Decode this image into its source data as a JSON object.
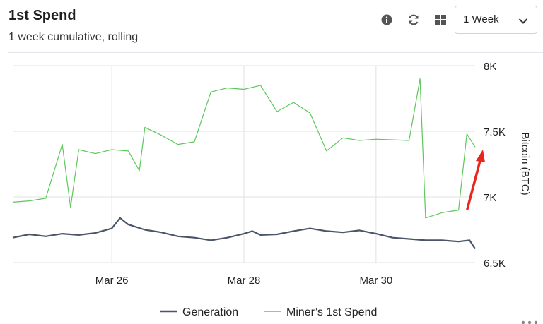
{
  "header": {
    "title": "1st Spend",
    "subtitle": "1 week cumulative, rolling"
  },
  "toolbar": {
    "info_icon": "info-icon",
    "refresh_icon": "refresh-icon",
    "layout_icon": "grid-icon",
    "range_value": "1 Week"
  },
  "colors": {
    "generation": "#4a5568",
    "first_spend": "#5cc85a",
    "grid": "#e2e2e2",
    "annotation_arrow": "#e8261c"
  },
  "chart_data": {
    "type": "line",
    "xlabel": "",
    "ylabel": "Bitcoin (BTC)",
    "x_range": [
      "2023-03-24T12:00",
      "2023-03-31T12:00"
    ],
    "ylim": [
      6500,
      8000
    ],
    "yticks": [
      {
        "value": 6500,
        "label": "6.5K"
      },
      {
        "value": 7000,
        "label": "7K"
      },
      {
        "value": 7500,
        "label": "7.5K"
      },
      {
        "value": 8000,
        "label": "8K"
      }
    ],
    "xticks": [
      {
        "x": "2023-03-26T00:00",
        "label": "Mar 26"
      },
      {
        "x": "2023-03-28T00:00",
        "label": "Mar 28"
      },
      {
        "x": "2023-03-30T00:00",
        "label": "Mar 30"
      }
    ],
    "grid": true,
    "legend_position": "bottom-center",
    "series": [
      {
        "name": "Generation",
        "points": [
          [
            "2023-03-24T12:00",
            6690
          ],
          [
            "2023-03-24T18:00",
            6715
          ],
          [
            "2023-03-25T00:00",
            6700
          ],
          [
            "2023-03-25T06:00",
            6720
          ],
          [
            "2023-03-25T12:00",
            6710
          ],
          [
            "2023-03-25T18:00",
            6725
          ],
          [
            "2023-03-26T00:00",
            6760
          ],
          [
            "2023-03-26T03:00",
            6840
          ],
          [
            "2023-03-26T06:00",
            6790
          ],
          [
            "2023-03-26T12:00",
            6750
          ],
          [
            "2023-03-26T18:00",
            6730
          ],
          [
            "2023-03-27T00:00",
            6700
          ],
          [
            "2023-03-27T06:00",
            6690
          ],
          [
            "2023-03-27T12:00",
            6670
          ],
          [
            "2023-03-27T18:00",
            6690
          ],
          [
            "2023-03-28T00:00",
            6720
          ],
          [
            "2023-03-28T03:00",
            6740
          ],
          [
            "2023-03-28T06:00",
            6710
          ],
          [
            "2023-03-28T12:00",
            6715
          ],
          [
            "2023-03-28T18:00",
            6740
          ],
          [
            "2023-03-29T00:00",
            6760
          ],
          [
            "2023-03-29T06:00",
            6740
          ],
          [
            "2023-03-29T12:00",
            6730
          ],
          [
            "2023-03-29T18:00",
            6745
          ],
          [
            "2023-03-30T00:00",
            6720
          ],
          [
            "2023-03-30T06:00",
            6690
          ],
          [
            "2023-03-30T12:00",
            6680
          ],
          [
            "2023-03-30T18:00",
            6670
          ],
          [
            "2023-03-31T00:00",
            6670
          ],
          [
            "2023-03-31T06:00",
            6660
          ],
          [
            "2023-03-31T10:00",
            6670
          ],
          [
            "2023-03-31T12:00",
            6605
          ]
        ]
      },
      {
        "name": "Miner’s 1st Spend",
        "points": [
          [
            "2023-03-24T12:00",
            6960
          ],
          [
            "2023-03-24T18:00",
            6970
          ],
          [
            "2023-03-25T00:00",
            6990
          ],
          [
            "2023-03-25T06:00",
            7400
          ],
          [
            "2023-03-25T09:00",
            6920
          ],
          [
            "2023-03-25T12:00",
            7360
          ],
          [
            "2023-03-25T18:00",
            7330
          ],
          [
            "2023-03-26T00:00",
            7360
          ],
          [
            "2023-03-26T06:00",
            7350
          ],
          [
            "2023-03-26T10:00",
            7200
          ],
          [
            "2023-03-26T12:00",
            7530
          ],
          [
            "2023-03-26T18:00",
            7470
          ],
          [
            "2023-03-27T00:00",
            7400
          ],
          [
            "2023-03-27T06:00",
            7420
          ],
          [
            "2023-03-27T12:00",
            7800
          ],
          [
            "2023-03-27T18:00",
            7830
          ],
          [
            "2023-03-28T00:00",
            7820
          ],
          [
            "2023-03-28T06:00",
            7850
          ],
          [
            "2023-03-28T12:00",
            7650
          ],
          [
            "2023-03-28T18:00",
            7720
          ],
          [
            "2023-03-29T00:00",
            7640
          ],
          [
            "2023-03-29T06:00",
            7350
          ],
          [
            "2023-03-29T12:00",
            7450
          ],
          [
            "2023-03-29T18:00",
            7430
          ],
          [
            "2023-03-30T00:00",
            7440
          ],
          [
            "2023-03-30T12:00",
            7430
          ],
          [
            "2023-03-30T16:00",
            7900
          ],
          [
            "2023-03-30T18:00",
            6840
          ],
          [
            "2023-03-31T00:00",
            6880
          ],
          [
            "2023-03-31T06:00",
            6900
          ],
          [
            "2023-03-31T09:00",
            7480
          ],
          [
            "2023-03-31T12:00",
            7380
          ]
        ]
      }
    ]
  }
}
